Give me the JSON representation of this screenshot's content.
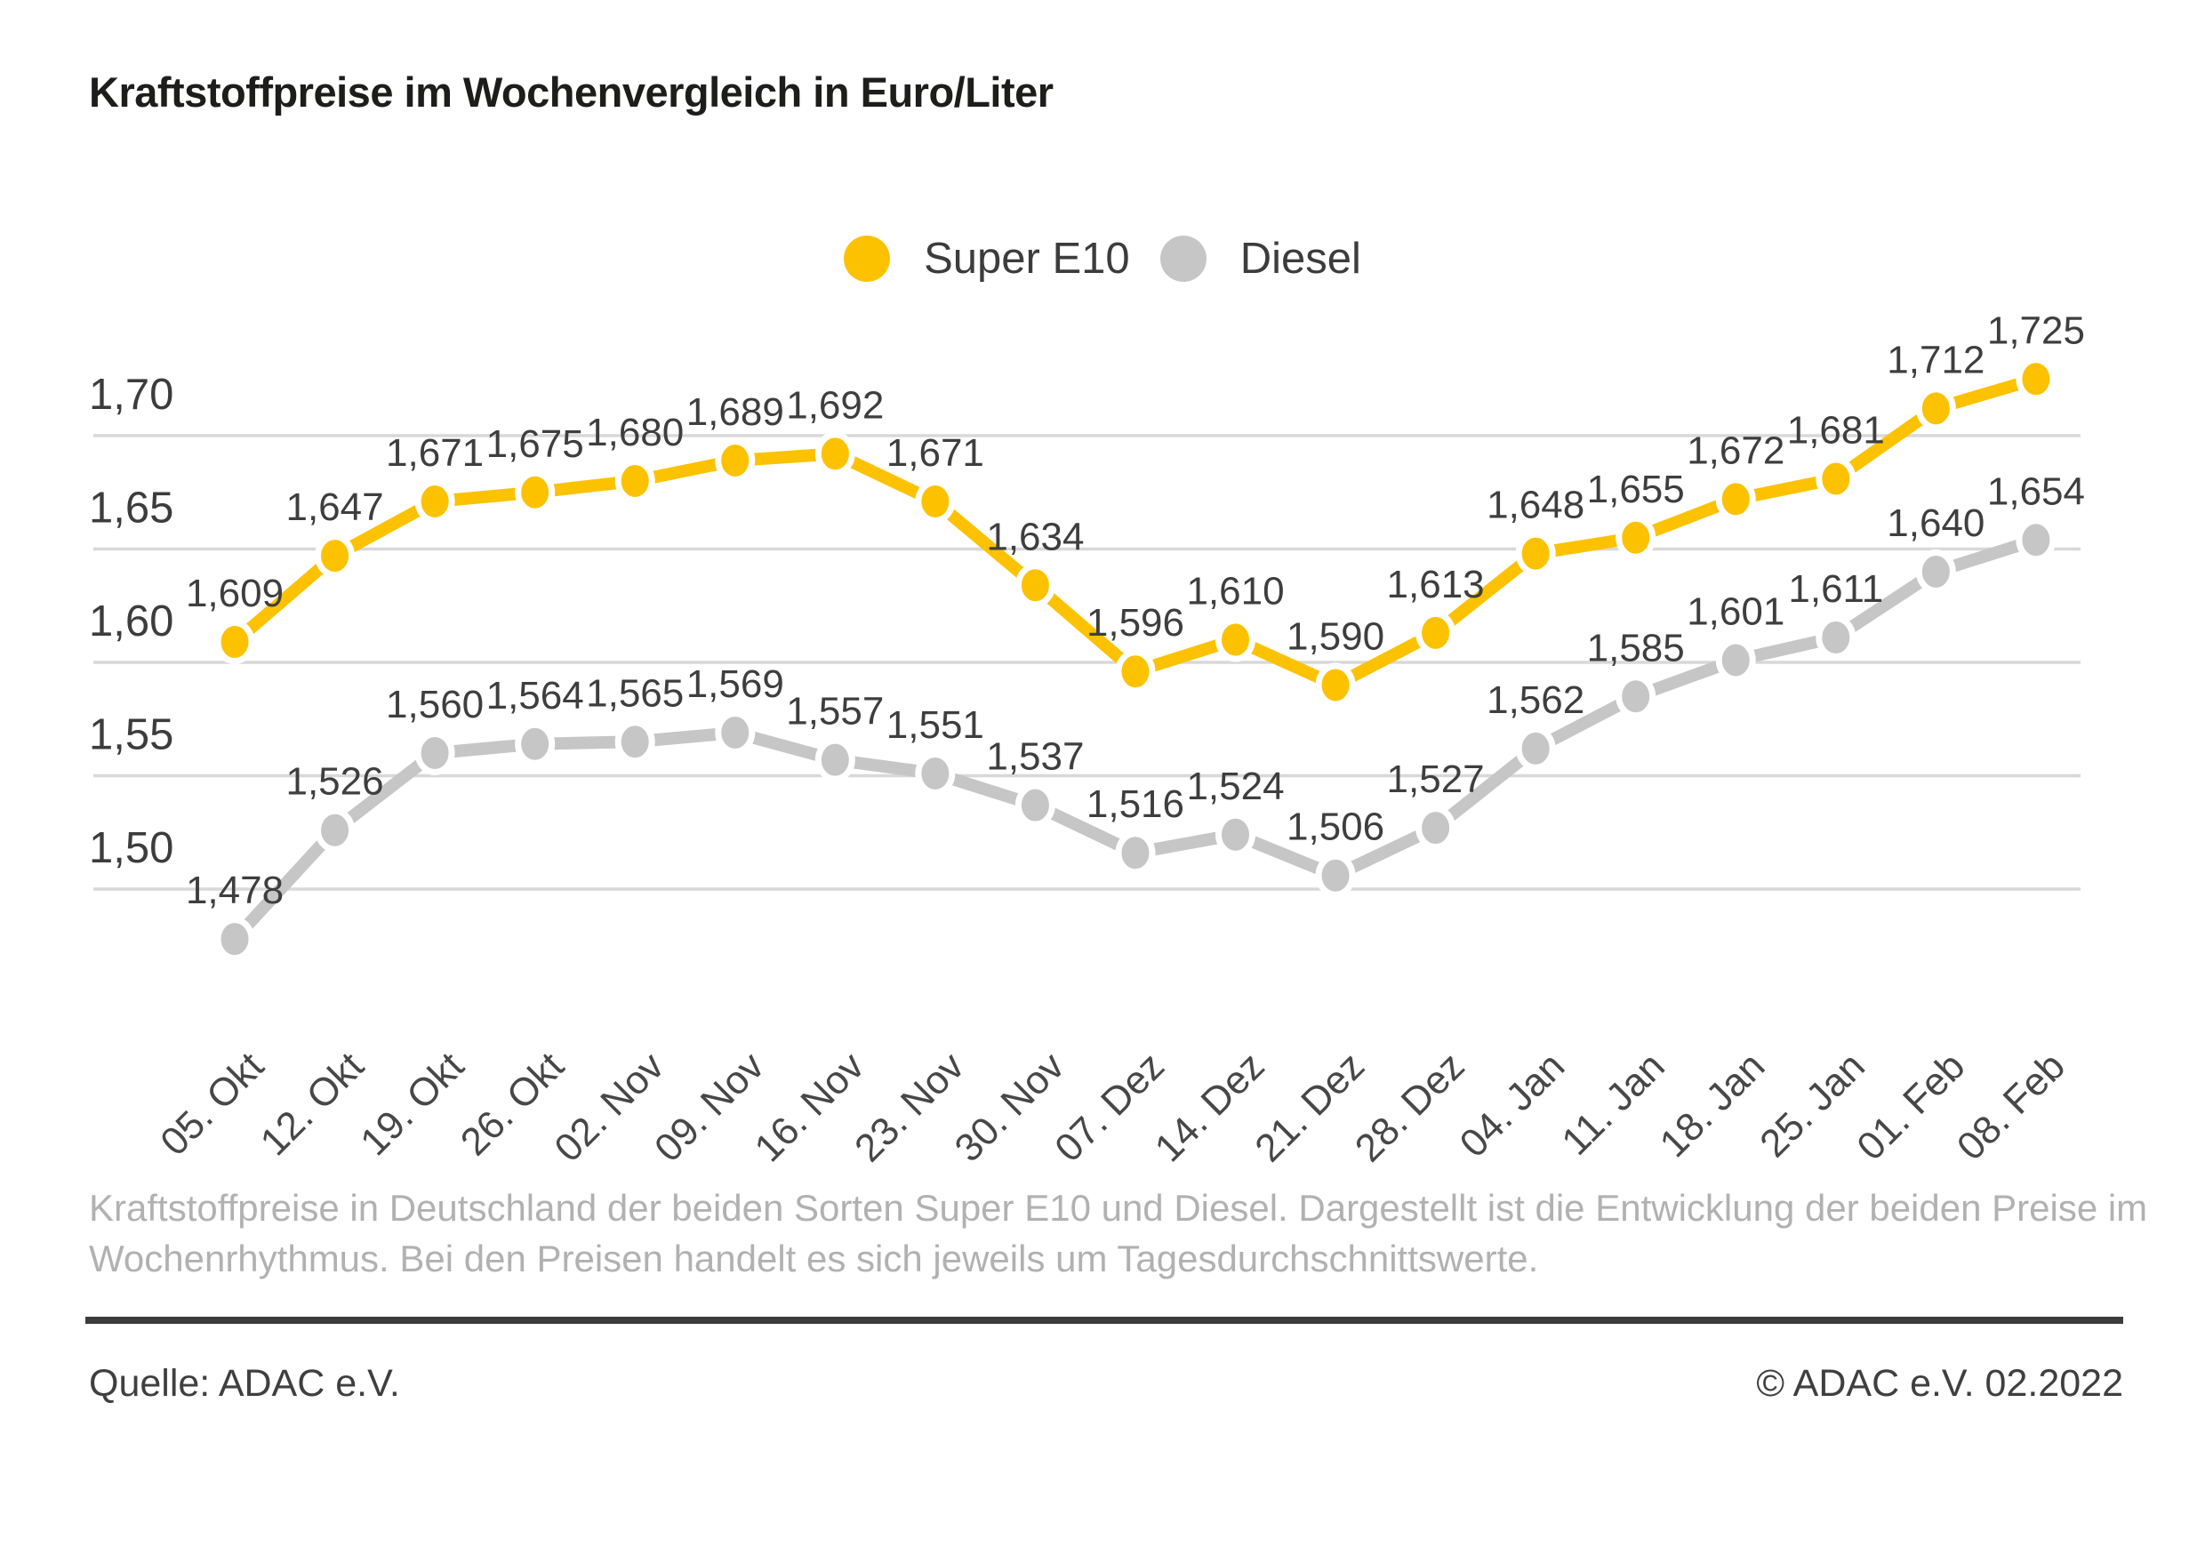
{
  "title": "Kraftstoffpreise im Wochenvergleich in Euro/Liter",
  "legend": {
    "items": [
      {
        "label": "Super E10",
        "color": "#FCC200"
      },
      {
        "label": "Diesel",
        "color": "#C6C6C6"
      }
    ]
  },
  "chart_data": {
    "type": "line",
    "x": [
      "05. Okt",
      "12. Okt",
      "19. Okt",
      "26. Okt",
      "02. Nov",
      "09. Nov",
      "16. Nov",
      "23. Nov",
      "30. Nov",
      "07. Dez",
      "14. Dez",
      "21. Dez",
      "28. Dez",
      "04. Jan",
      "11. Jan",
      "18. Jan",
      "25. Jan",
      "01. Feb",
      "08. Feb"
    ],
    "series": [
      {
        "name": "Super E10",
        "color": "#FCC200",
        "values": [
          1.609,
          1.647,
          1.671,
          1.675,
          1.68,
          1.689,
          1.692,
          1.671,
          1.634,
          1.596,
          1.61,
          1.59,
          1.613,
          1.648,
          1.655,
          1.672,
          1.681,
          1.712,
          1.725
        ]
      },
      {
        "name": "Diesel",
        "color": "#C6C6C6",
        "values": [
          1.478,
          1.526,
          1.56,
          1.564,
          1.565,
          1.569,
          1.557,
          1.551,
          1.537,
          1.516,
          1.524,
          1.506,
          1.527,
          1.562,
          1.585,
          1.601,
          1.611,
          1.64,
          1.654
        ]
      }
    ],
    "yticks": [
      {
        "label": "1,70",
        "value": 1.7
      },
      {
        "label": "1,65",
        "value": 1.65
      },
      {
        "label": "1,60",
        "value": 1.6
      },
      {
        "label": "1,55",
        "value": 1.55
      },
      {
        "label": "1,50",
        "value": 1.5
      }
    ],
    "ylabel": "Euro/Liter",
    "grid": true,
    "legend_position": "top-center",
    "gridline_color": "#D8D8D8",
    "label_color": "#3E3E3E"
  },
  "footnote": {
    "line1": "Kraftstoffpreise in Deutschland der beiden Sorten Super E10 und Diesel. Dargestellt ist die Entwicklung der beiden Preise im",
    "line2": "Wochenrhythmus. Bei den Preisen handelt es sich jeweils um Tagesdurchschnittswerte."
  },
  "footer": {
    "source": "Quelle: ADAC e.V.",
    "copyright": "© ADAC e.V. 02.2022"
  }
}
